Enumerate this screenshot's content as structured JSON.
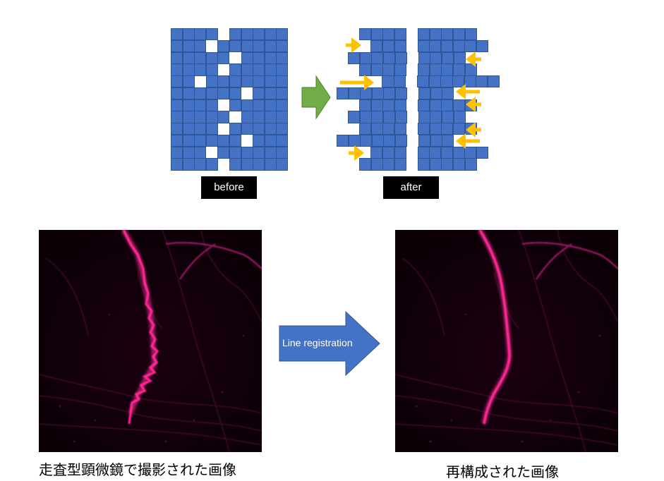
{
  "top": {
    "before_label": "before",
    "after_label": "after"
  },
  "bottom": {
    "arrow_label": "Line registration",
    "left_caption": "走査型顕微鏡で撮影された画像",
    "right_caption": "再構成された画像"
  },
  "colors": {
    "cell": "#4472c4",
    "cell_border": "#2f5597",
    "green_arrow": "#70ad47",
    "yellow_arrow": "#ffc000",
    "blue_arrow": "#4472c4",
    "signal": "#ff1a8c"
  },
  "icons": {
    "green_arrow": "right-arrow-icon",
    "yellow_arrows": "shift-arrow-icon",
    "blue_arrow": "right-arrow-icon"
  }
}
